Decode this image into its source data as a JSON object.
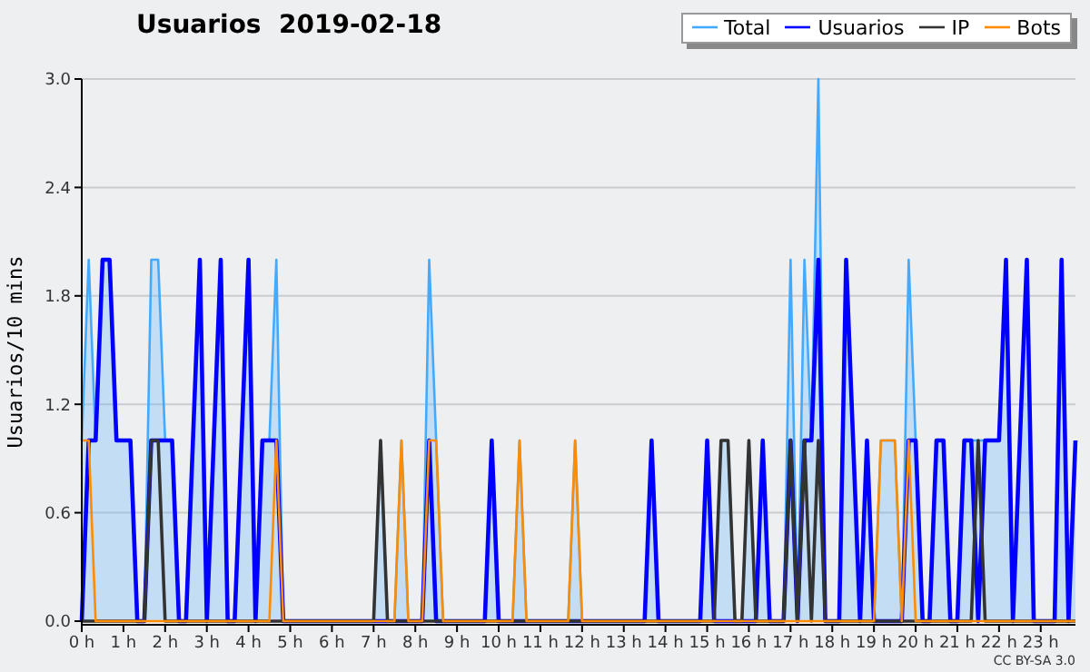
{
  "chart_data": {
    "type": "line",
    "title": "Usuarios  2019-02-18",
    "ylabel": "Usuarios/10 mins",
    "annotations": [
      "CC BY-SA 3.0"
    ],
    "x": [
      0,
      0.167,
      0.333,
      0.5,
      0.667,
      0.833,
      1,
      1.167,
      1.333,
      1.5,
      1.667,
      1.833,
      2,
      2.167,
      2.333,
      2.5,
      2.667,
      2.833,
      3,
      3.167,
      3.333,
      3.5,
      3.667,
      3.833,
      4,
      4.167,
      4.333,
      4.5,
      4.667,
      4.833,
      5,
      5.167,
      5.333,
      5.5,
      5.667,
      5.833,
      6,
      6.167,
      6.333,
      6.5,
      6.667,
      6.833,
      7,
      7.167,
      7.333,
      7.5,
      7.667,
      7.833,
      8,
      8.167,
      8.333,
      8.5,
      8.667,
      8.833,
      9,
      9.167,
      9.333,
      9.5,
      9.667,
      9.833,
      10,
      10.167,
      10.333,
      10.5,
      10.667,
      10.833,
      11,
      11.167,
      11.333,
      11.5,
      11.667,
      11.833,
      12,
      12.167,
      12.333,
      12.5,
      12.667,
      12.833,
      13,
      13.167,
      13.333,
      13.5,
      13.667,
      13.833,
      14,
      14.167,
      14.333,
      14.5,
      14.667,
      14.833,
      15,
      15.167,
      15.333,
      15.5,
      15.667,
      15.833,
      16,
      16.167,
      16.333,
      16.5,
      16.667,
      16.833,
      17,
      17.167,
      17.333,
      17.5,
      17.667,
      17.833,
      18,
      18.167,
      18.333,
      18.5,
      18.667,
      18.833,
      19,
      19.167,
      19.333,
      19.5,
      19.667,
      19.833,
      20,
      20.167,
      20.333,
      20.5,
      20.667,
      20.833,
      21,
      21.167,
      21.333,
      21.5,
      21.667,
      21.833,
      22,
      22.167,
      22.333,
      22.5,
      22.667,
      22.833,
      23,
      23.167,
      23.333,
      23.5,
      23.667,
      23.833
    ],
    "series": [
      {
        "name": "Total",
        "type": "area",
        "color": "#44aaff",
        "values": [
          1,
          2,
          1,
          2,
          2,
          1,
          1,
          1,
          0,
          0,
          2,
          2,
          1,
          1,
          0,
          0,
          1,
          2,
          0,
          1,
          2,
          0,
          0,
          1,
          2,
          0,
          1,
          1,
          2,
          0,
          0,
          0,
          0,
          0,
          0,
          0,
          0,
          0,
          0,
          0,
          0,
          0,
          0,
          1,
          0,
          0,
          1,
          0,
          0,
          0,
          2,
          1,
          0,
          0,
          0,
          0,
          0,
          0,
          0,
          1,
          0,
          0,
          0,
          1,
          0,
          0,
          0,
          0,
          0,
          0,
          0,
          1,
          0,
          0,
          0,
          0,
          0,
          0,
          0,
          0,
          0,
          0,
          1,
          0,
          0,
          0,
          0,
          0,
          0,
          0,
          1,
          0,
          1,
          1,
          0,
          0,
          1,
          0,
          1,
          0,
          0,
          0,
          2,
          0,
          2,
          1,
          3,
          0,
          0,
          0,
          2,
          1,
          0,
          1,
          0,
          1,
          1,
          1,
          0,
          2,
          1,
          0,
          0,
          1,
          1,
          0,
          0,
          1,
          1,
          1,
          1,
          1,
          1,
          2,
          0,
          1,
          2,
          0,
          0,
          0,
          0,
          2,
          0,
          1
        ]
      },
      {
        "name": "Usuarios",
        "color": "#0000ff",
        "values": [
          0,
          1,
          1,
          2,
          2,
          1,
          1,
          1,
          0,
          0,
          1,
          1,
          1,
          1,
          0,
          0,
          1,
          2,
          0,
          1,
          2,
          0,
          0,
          1,
          2,
          0,
          1,
          1,
          1,
          0,
          0,
          0,
          0,
          0,
          0,
          0,
          0,
          0,
          0,
          0,
          0,
          0,
          0,
          0,
          0,
          0,
          0,
          0,
          0,
          0,
          1,
          0,
          0,
          0,
          0,
          0,
          0,
          0,
          0,
          1,
          0,
          0,
          0,
          0,
          0,
          0,
          0,
          0,
          0,
          0,
          0,
          0,
          0,
          0,
          0,
          0,
          0,
          0,
          0,
          0,
          0,
          0,
          1,
          0,
          0,
          0,
          0,
          0,
          0,
          0,
          1,
          0,
          0,
          0,
          0,
          0,
          0,
          0,
          1,
          0,
          0,
          0,
          1,
          0,
          1,
          1,
          2,
          0,
          0,
          0,
          2,
          1,
          0,
          1,
          0,
          0,
          0,
          0,
          0,
          1,
          1,
          0,
          0,
          1,
          1,
          0,
          0,
          1,
          1,
          0,
          1,
          1,
          1,
          2,
          0,
          1,
          2,
          0,
          0,
          0,
          0,
          2,
          0,
          1
        ]
      },
      {
        "name": "IP",
        "color": "#333333",
        "values": [
          0,
          0,
          0,
          0,
          0,
          0,
          0,
          0,
          0,
          0,
          1,
          1,
          0,
          0,
          0,
          0,
          0,
          0,
          0,
          0,
          0,
          0,
          0,
          0,
          0,
          0,
          0,
          0,
          0,
          0,
          0,
          0,
          0,
          0,
          0,
          0,
          0,
          0,
          0,
          0,
          0,
          0,
          0,
          1,
          0,
          0,
          0,
          0,
          0,
          0,
          0,
          0,
          0,
          0,
          0,
          0,
          0,
          0,
          0,
          0,
          0,
          0,
          0,
          0,
          0,
          0,
          0,
          0,
          0,
          0,
          0,
          0,
          0,
          0,
          0,
          0,
          0,
          0,
          0,
          0,
          0,
          0,
          0,
          0,
          0,
          0,
          0,
          0,
          0,
          0,
          0,
          0,
          1,
          1,
          0,
          0,
          1,
          0,
          0,
          0,
          0,
          0,
          1,
          0,
          1,
          0,
          1,
          0,
          0,
          0,
          0,
          0,
          0,
          0,
          0,
          0,
          0,
          0,
          0,
          0,
          0,
          0,
          0,
          0,
          0,
          0,
          0,
          0,
          0,
          1,
          0,
          0,
          0,
          0,
          0,
          0,
          0,
          0,
          0,
          0,
          0,
          0,
          0,
          0
        ]
      },
      {
        "name": "Bots",
        "color": "#ff8c00",
        "values": [
          1,
          1,
          0,
          0,
          0,
          0,
          0,
          0,
          0,
          0,
          0,
          0,
          0,
          0,
          0,
          0,
          0,
          0,
          0,
          0,
          0,
          0,
          0,
          0,
          0,
          0,
          0,
          0,
          1,
          0,
          0,
          0,
          0,
          0,
          0,
          0,
          0,
          0,
          0,
          0,
          0,
          0,
          0,
          0,
          0,
          0,
          1,
          0,
          0,
          0,
          1,
          1,
          0,
          0,
          0,
          0,
          0,
          0,
          0,
          0,
          0,
          0,
          0,
          1,
          0,
          0,
          0,
          0,
          0,
          0,
          0,
          1,
          0,
          0,
          0,
          0,
          0,
          0,
          0,
          0,
          0,
          0,
          0,
          0,
          0,
          0,
          0,
          0,
          0,
          0,
          0,
          0,
          0,
          0,
          0,
          0,
          0,
          0,
          0,
          0,
          0,
          0,
          0,
          0,
          0,
          0,
          0,
          0,
          0,
          0,
          0,
          0,
          0,
          0,
          0,
          1,
          1,
          1,
          0,
          1,
          0,
          0,
          0,
          0,
          0,
          0,
          0,
          0,
          0,
          0,
          0,
          0,
          0,
          0,
          0,
          0,
          0,
          0,
          0,
          0,
          0,
          0,
          0,
          0
        ]
      }
    ],
    "xlim": [
      0,
      23.833
    ],
    "xticks": [
      {
        "value": 0,
        "label": "0 h"
      },
      {
        "value": 1,
        "label": "1 h"
      },
      {
        "value": 2,
        "label": "2 h"
      },
      {
        "value": 3,
        "label": "3 h"
      },
      {
        "value": 4,
        "label": "4 h"
      },
      {
        "value": 5,
        "label": "5 h"
      },
      {
        "value": 6,
        "label": "6 h"
      },
      {
        "value": 7,
        "label": "7 h"
      },
      {
        "value": 8,
        "label": "8 h"
      },
      {
        "value": 9,
        "label": "9 h"
      },
      {
        "value": 10,
        "label": "10 h"
      },
      {
        "value": 11,
        "label": "11 h"
      },
      {
        "value": 12,
        "label": "12 h"
      },
      {
        "value": 13,
        "label": "13 h"
      },
      {
        "value": 14,
        "label": "14 h"
      },
      {
        "value": 15,
        "label": "15 h"
      },
      {
        "value": 16,
        "label": "16 h"
      },
      {
        "value": 17,
        "label": "17 h"
      },
      {
        "value": 18,
        "label": "18 h"
      },
      {
        "value": 19,
        "label": "19 h"
      },
      {
        "value": 20,
        "label": "20 h"
      },
      {
        "value": 21,
        "label": "21 h"
      },
      {
        "value": 22,
        "label": "22 h"
      },
      {
        "value": 23,
        "label": "23 h"
      }
    ],
    "ylim": [
      0,
      3
    ],
    "yticks": [
      {
        "value": 0,
        "label": "0.0"
      },
      0.6,
      1.2,
      1.8,
      2.4,
      {
        "value": 3,
        "label": "3.0"
      }
    ],
    "grid": "y",
    "legend": "top right"
  }
}
